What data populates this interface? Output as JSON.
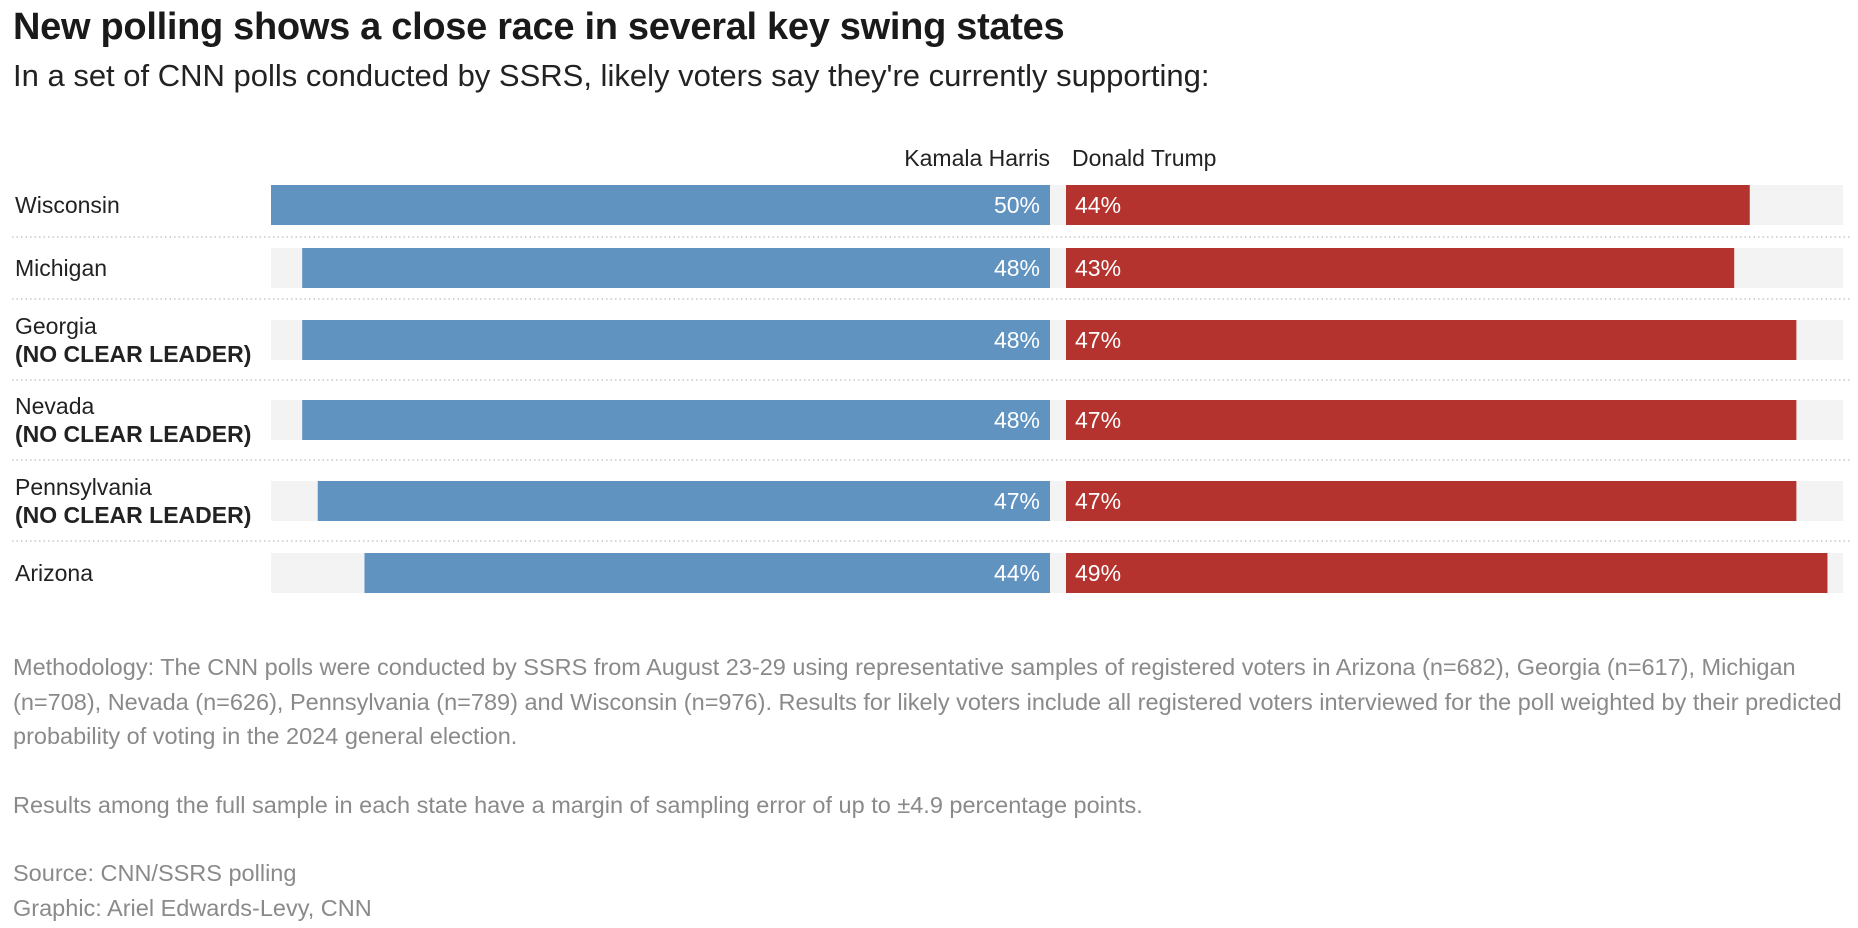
{
  "title": "New polling shows a close race in several key swing states",
  "subtitle": "In a set of CNN polls conducted by SSRS, likely voters say they're currently supporting:",
  "colors": {
    "harris": "#6193c1",
    "trump": "#b5332e",
    "track": "#f3f3f3",
    "divider": "#c8c8c8"
  },
  "chart_data": {
    "type": "bar",
    "orientation": "horizontal-diverging",
    "categories": [
      "Wisconsin",
      "Michigan",
      "Georgia",
      "Nevada",
      "Pennsylvania",
      "Arizona"
    ],
    "category_notes": [
      "",
      "",
      "(NO CLEAR LEADER)",
      "(NO CLEAR LEADER)",
      "(NO CLEAR LEADER)",
      ""
    ],
    "series": [
      {
        "name": "Kamala Harris",
        "values": [
          50,
          48,
          48,
          48,
          47,
          44
        ],
        "color": "#6193c1"
      },
      {
        "name": "Donald Trump",
        "values": [
          44,
          43,
          47,
          47,
          47,
          49
        ],
        "color": "#b5332e"
      }
    ],
    "value_suffix": "%",
    "xlim": [
      0,
      50
    ],
    "grid": false,
    "legend": "top-center"
  },
  "notes": {
    "methodology": "Methodology: The CNN polls were conducted by SSRS from August 23-29 using representative samples of registered voters in Arizona (n=682), Georgia (n=617), Michigan (n=708), Nevada (n=626), Pennsylvania (n=789) and Wisconsin (n=976). Results for likely voters include all registered voters interviewed for the poll weighted by their predicted probability of voting in the 2024 general election.",
    "margin": "Results among the full sample in each state have a margin of sampling error of up to ±4.9 percentage points.",
    "source": "Source: CNN/SSRS polling",
    "graphic": "Graphic: Ariel Edwards-Levy, CNN"
  }
}
